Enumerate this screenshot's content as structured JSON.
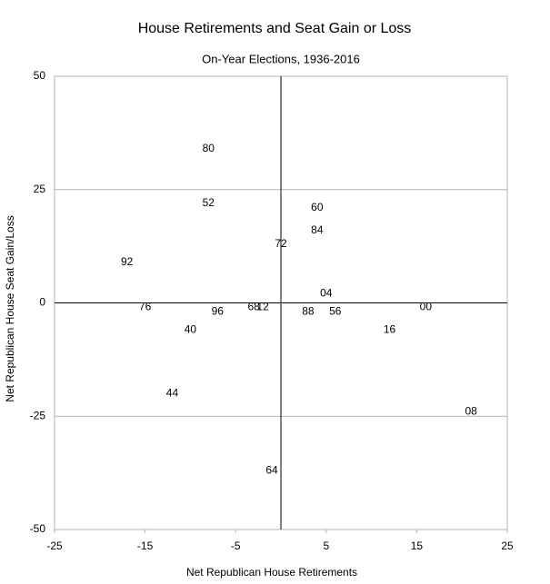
{
  "chart_data": {
    "type": "scatter",
    "title": "House Retirements and Seat Gain or Loss",
    "subtitle": "On-Year Elections, 1936-2016",
    "xlabel": "Net Republican House Retirements",
    "ylabel": "Net Republican House Seat Gain/Loss",
    "series": [
      {
        "labels": [
          "80",
          "52",
          "60",
          "84",
          "72",
          "92",
          "04",
          "76",
          "96",
          "68",
          "12",
          "88",
          "56",
          "00",
          "40",
          "16",
          "44",
          "08",
          "64"
        ],
        "x": [
          -8,
          -8,
          4,
          4,
          0,
          -17,
          5,
          -15,
          -7,
          -3,
          -2,
          3,
          6,
          16,
          -10,
          12,
          -12,
          21,
          -1
        ],
        "values": [
          34,
          22,
          21,
          16,
          13,
          9,
          2,
          -1,
          -2,
          -1,
          -1,
          -2,
          -2,
          -1,
          -6,
          -6,
          -20,
          -24,
          -37
        ],
        "color": "#000000"
      }
    ],
    "xlim": [
      -25,
      25
    ],
    "xticks": [
      -25,
      -15,
      -5,
      5,
      15,
      25
    ],
    "ylim": [
      -50,
      50
    ],
    "yticks": [
      -50,
      -25,
      0,
      25,
      50
    ],
    "grid": true
  }
}
